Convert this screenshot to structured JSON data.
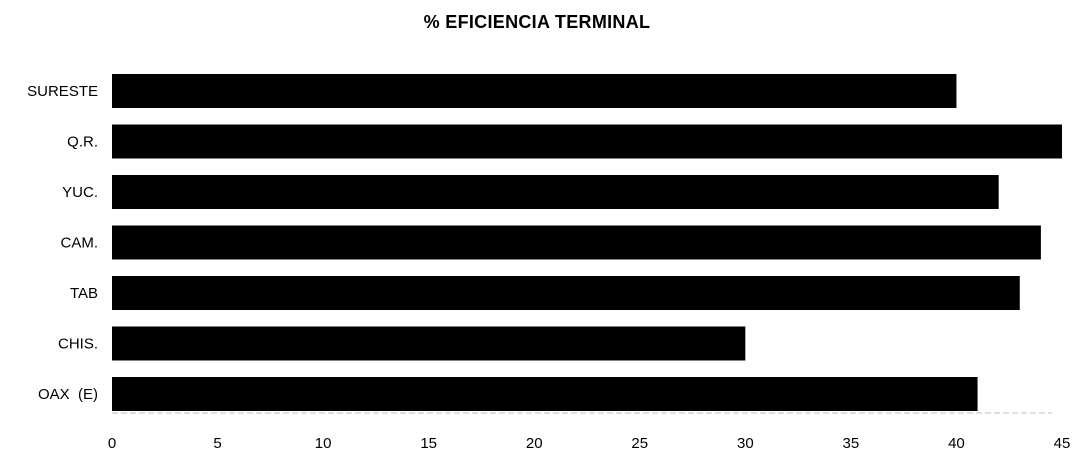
{
  "chart_data": {
    "type": "bar",
    "orientation": "horizontal",
    "title": "% EFICIENCIA TERMINAL",
    "xlabel": "",
    "ylabel": "",
    "categories": [
      "SURESTE",
      "Q.R.",
      "YUC.",
      "CAM.",
      "TAB",
      "CHIS.",
      "OAX  (E)"
    ],
    "values": [
      40,
      45,
      42,
      44,
      43,
      30,
      41
    ],
    "xlim": [
      0,
      45
    ],
    "xticks": [
      "0",
      "5",
      "10",
      "15",
      "20",
      "25",
      "30",
      "35",
      "40",
      "45"
    ],
    "grid": false,
    "legend": "none",
    "bar_color": "#000000"
  }
}
